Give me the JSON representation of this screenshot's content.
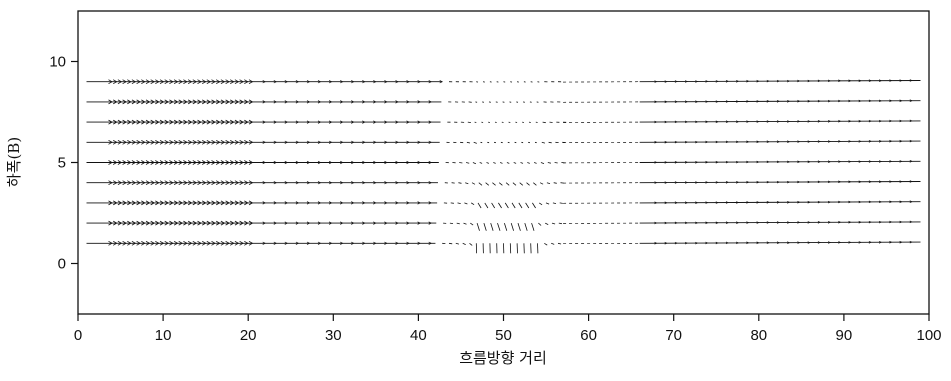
{
  "chart_data": {
    "type": "vector-field",
    "title": "",
    "xlabel": "흐름방향 거리",
    "ylabel": "하폭(B)",
    "xlim": [
      0,
      100
    ],
    "ylim": [
      -2.5,
      12.5
    ],
    "x_ticks": [
      0,
      10,
      20,
      30,
      40,
      50,
      60,
      70,
      80,
      90,
      100
    ],
    "x_tick_labels": [
      "0",
      "10",
      "20",
      "30",
      "40",
      "50",
      "60",
      "70",
      "80",
      "90",
      "100"
    ],
    "y_ticks": [
      0,
      5,
      10
    ],
    "y_tick_labels": [
      "0",
      "5",
      "10"
    ],
    "grid": false,
    "legend": null,
    "rows_y": [
      1,
      2,
      3,
      4,
      5,
      6,
      7,
      8,
      9
    ],
    "streamline_x_range": [
      1,
      99
    ],
    "obstruction_x_range": [
      46.5,
      54
    ],
    "line_color": "#111111"
  }
}
